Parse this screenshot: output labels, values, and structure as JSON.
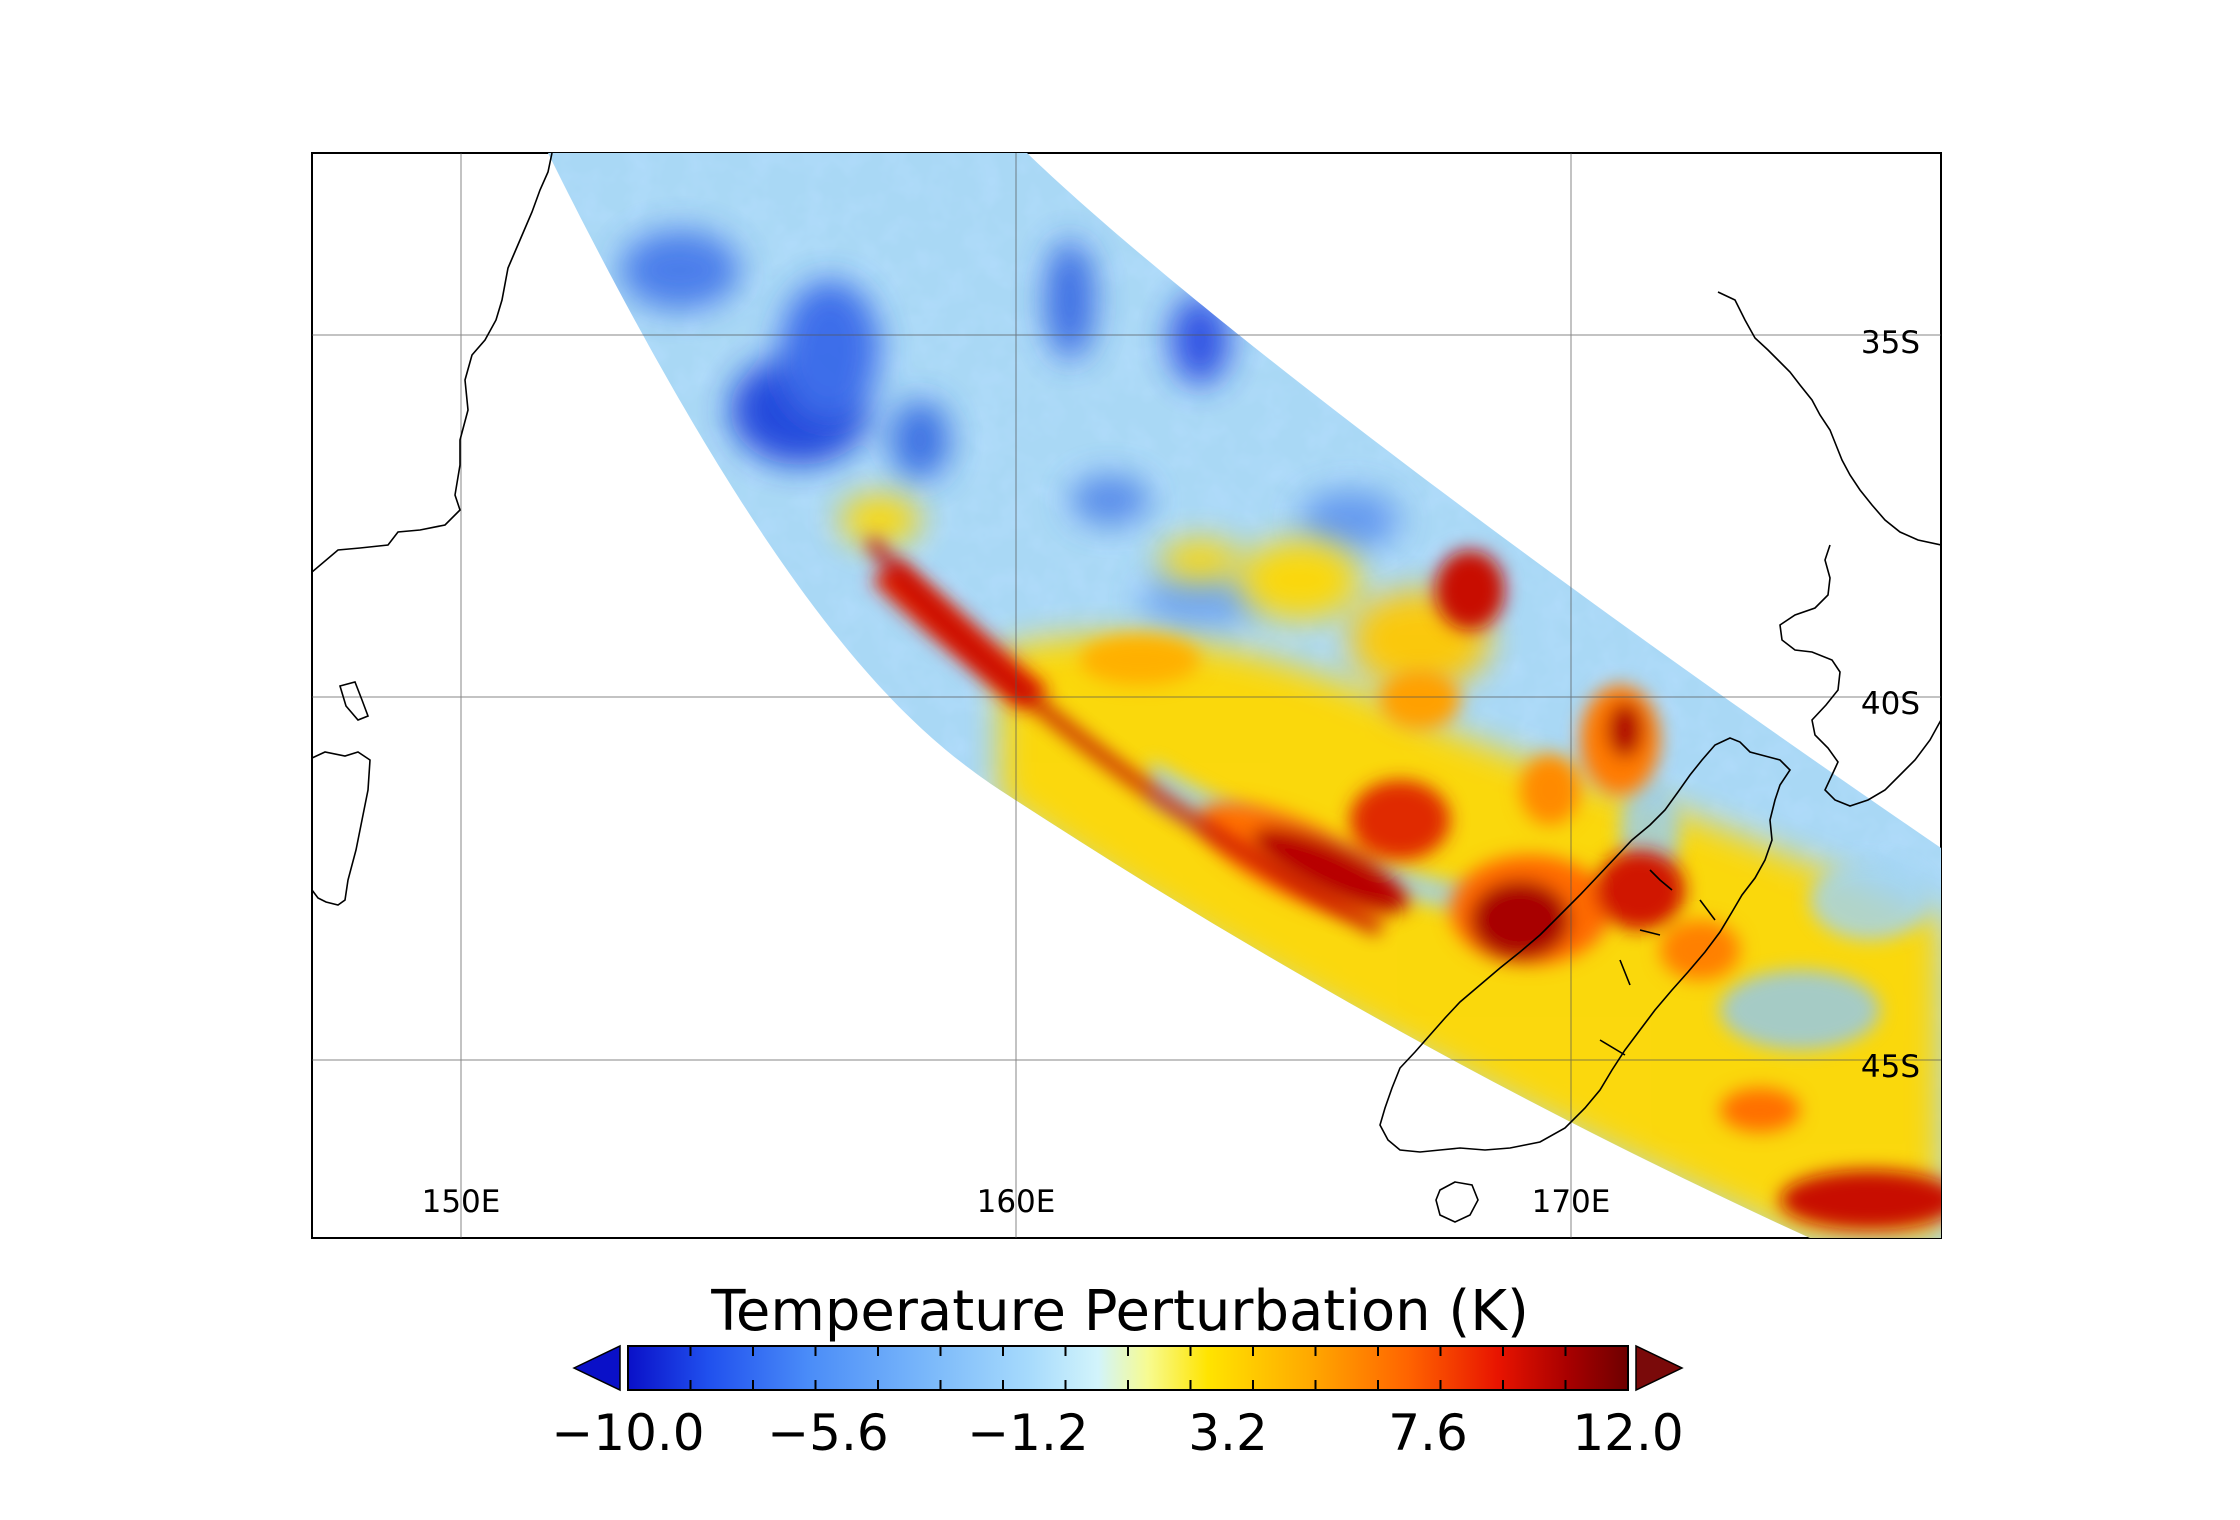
{
  "map": {
    "lon_labels": [
      "150E",
      "160E",
      "170E"
    ],
    "lat_labels": [
      "35S",
      "40S",
      "45S"
    ],
    "lon_values": [
      150,
      160,
      170
    ],
    "lat_values": [
      -35,
      -40,
      -45
    ],
    "lon_range": [
      147.3,
      176.6
    ],
    "lat_range": [
      -32.5,
      -47.5
    ],
    "swath": "satellite observation swath from northwest to southeast across Tasman Sea and New Zealand"
  },
  "colorbar": {
    "title": "Temperature Perturbation (K)",
    "min": -10.0,
    "max": 12.0,
    "labels": [
      "−10.0",
      "−5.6",
      "−1.2",
      "3.2",
      "7.6",
      "12.0"
    ],
    "colors": [
      "#0a10c8",
      "#2050ee",
      "#4a8cf8",
      "#7ab8fa",
      "#a6dafc",
      "#d2f4fb",
      "#f7fb90",
      "#ffe400",
      "#ffaa00",
      "#ff6400",
      "#e81400",
      "#a80000",
      "#6e0000"
    ],
    "under_color": "#0a10c8",
    "over_color": "#7a0a0a"
  }
}
